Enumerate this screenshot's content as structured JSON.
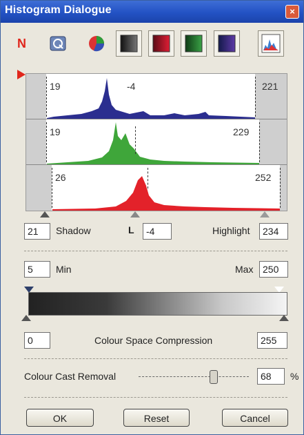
{
  "window": {
    "title": "Histogram Dialogue"
  },
  "toolbar": {
    "items": [
      "n-icon",
      "auto-levels-icon",
      "colour-wheel-icon",
      "grey-channel-icon",
      "red-channel-icon",
      "green-channel-icon",
      "blue-channel-icon",
      "histogram-preview-icon"
    ]
  },
  "histograms": [
    {
      "channel": "blue",
      "color": "#2b2e8f",
      "left_value": "19",
      "center_value": "-4",
      "right_value": "221"
    },
    {
      "channel": "green",
      "color": "#3fa63a",
      "left_value": "19",
      "center_value": "",
      "right_value": "229"
    },
    {
      "channel": "red",
      "color": "#e3222a",
      "left_value": "26",
      "center_value": "",
      "right_value": "252"
    }
  ],
  "levels": {
    "shadow_value": "21",
    "shadow_label": "Shadow",
    "gamma_symbol": "L",
    "gamma_value": "-4",
    "highlight_label": "Highlight",
    "highlight_value": "234"
  },
  "output": {
    "min_value": "5",
    "min_label": "Min",
    "max_label": "Max",
    "max_value": "250"
  },
  "compression": {
    "left_value": "0",
    "label": "Colour Space Compression",
    "right_value": "255"
  },
  "cast_removal": {
    "label": "Colour Cast Removal",
    "value": "68",
    "unit": "%",
    "level_percent": 68
  },
  "buttons": {
    "ok": "OK",
    "reset": "Reset",
    "cancel": "Cancel"
  }
}
